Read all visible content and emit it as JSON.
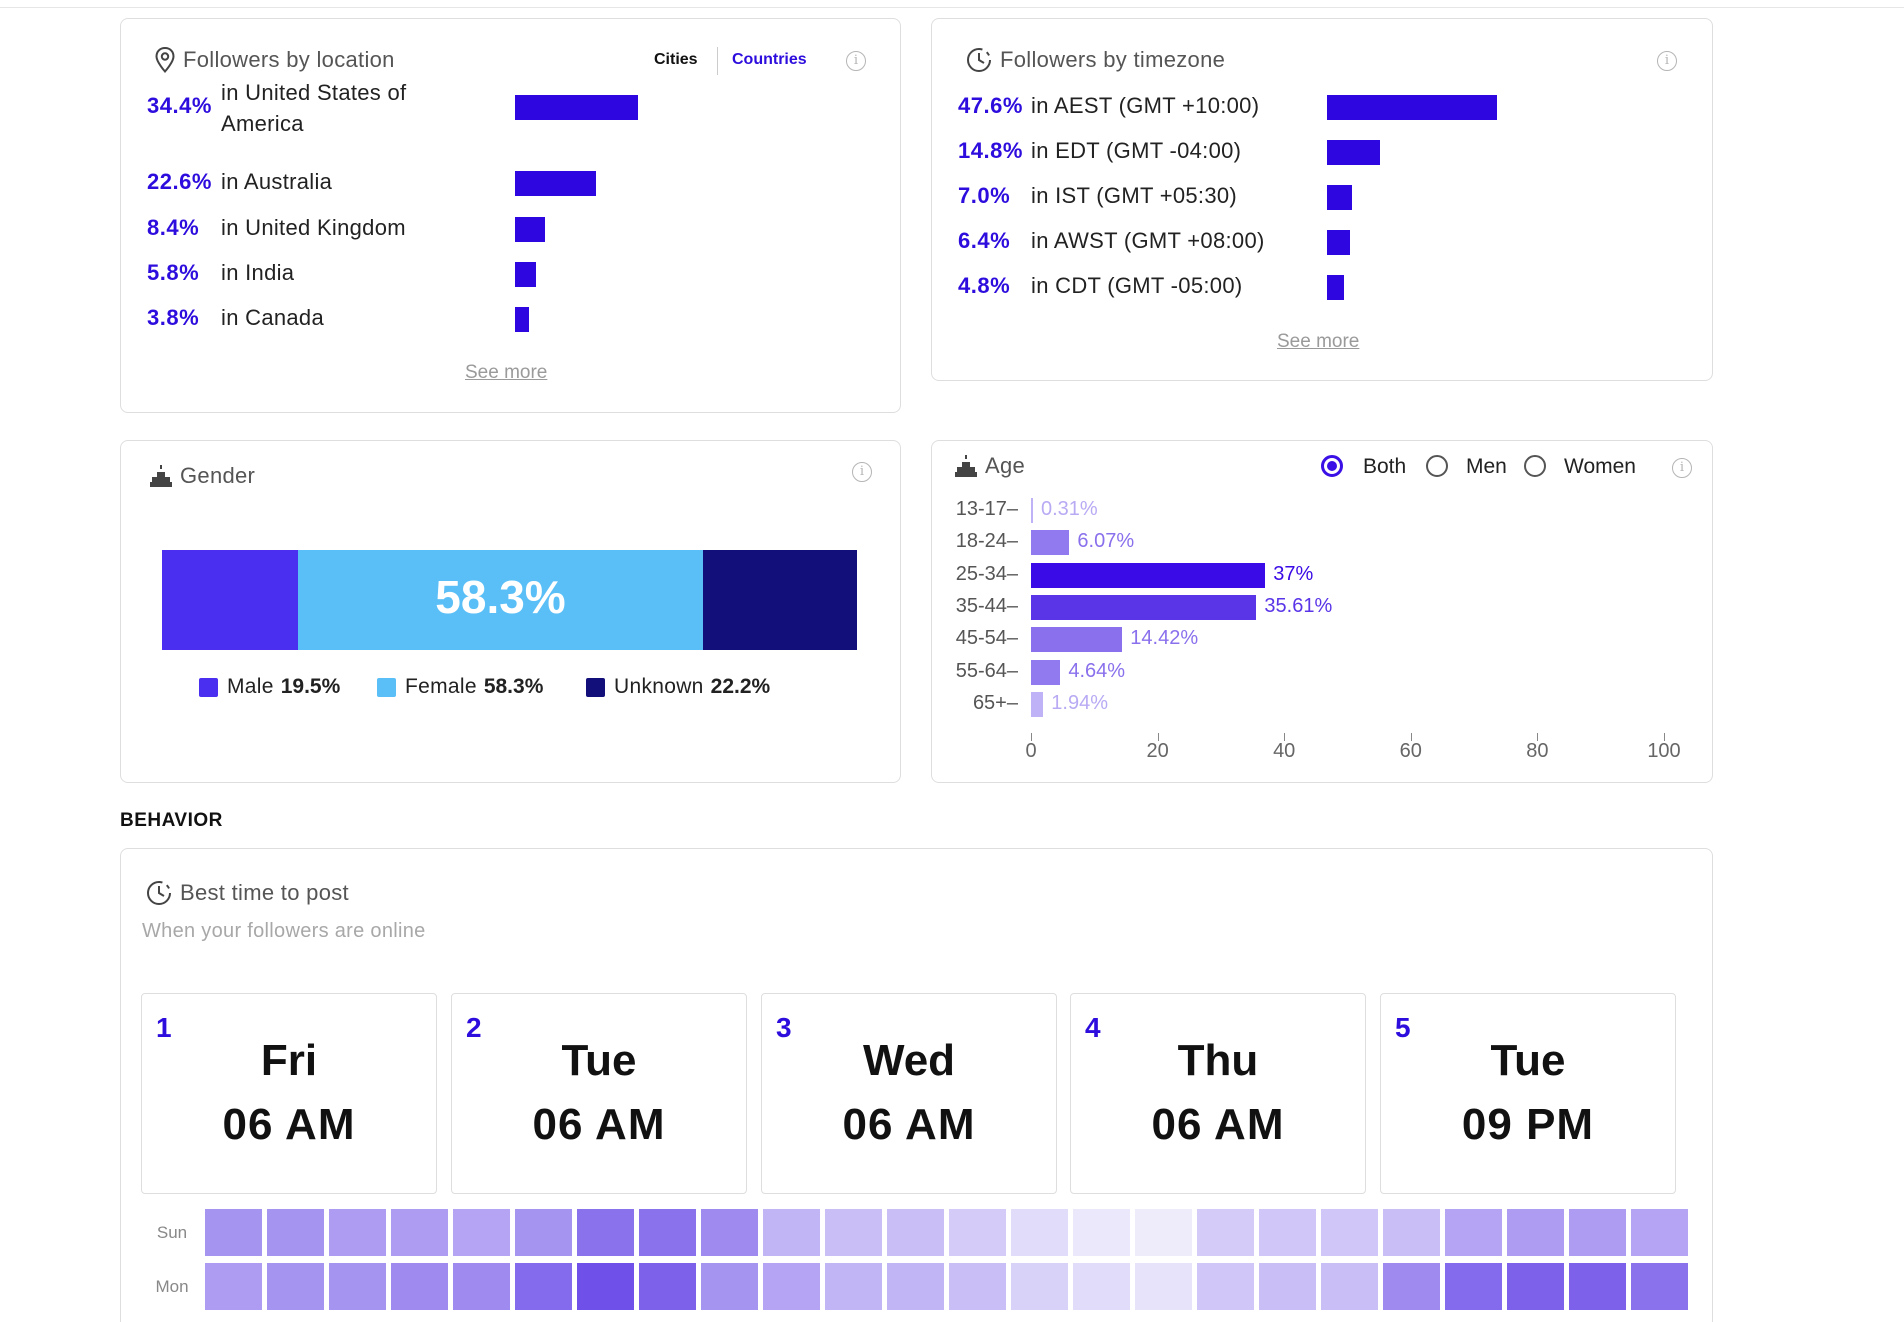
{
  "location": {
    "title": "Followers by location",
    "toggle": [
      "Cities",
      "Countries"
    ],
    "rows": [
      {
        "pct": "34.4%",
        "label1": "in United States of",
        "label2": "America",
        "value": 34.4
      },
      {
        "pct": "22.6%",
        "label1": "in Australia",
        "value": 22.6
      },
      {
        "pct": "8.4%",
        "label1": "in United Kingdom",
        "value": 8.4
      },
      {
        "pct": "5.8%",
        "label1": "in India",
        "value": 5.8
      },
      {
        "pct": "3.8%",
        "label1": "in Canada",
        "value": 3.8
      }
    ],
    "see_more": "See more"
  },
  "timezone": {
    "title": "Followers by timezone",
    "rows": [
      {
        "pct": "47.6%",
        "label1": "in AEST (GMT +10:00)",
        "value": 47.6
      },
      {
        "pct": "14.8%",
        "label1": "in EDT (GMT -04:00)",
        "value": 14.8
      },
      {
        "pct": "7.0%",
        "label1": "in IST (GMT +05:30)",
        "value": 7.0
      },
      {
        "pct": "6.4%",
        "label1": "in AWST (GMT +08:00)",
        "value": 6.4
      },
      {
        "pct": "4.8%",
        "label1": "in CDT (GMT -05:00)",
        "value": 4.8
      }
    ],
    "see_more": "See more"
  },
  "gender": {
    "title": "Gender",
    "center_label": "58.3%",
    "segments": [
      {
        "name": "Male",
        "value_label": "19.5%",
        "value": 19.5,
        "color": "#4a2ff0"
      },
      {
        "name": "Female",
        "value_label": "58.3%",
        "value": 58.3,
        "color": "#5bbff7"
      },
      {
        "name": "Unknown",
        "value_label": "22.2%",
        "value": 22.2,
        "color": "#120f7a"
      }
    ]
  },
  "age": {
    "title": "Age",
    "options": [
      "Both",
      "Men",
      "Women"
    ],
    "selected": "Both"
  },
  "chart_data": {
    "type": "bar",
    "orientation": "horizontal",
    "categories": [
      "13-17",
      "18-24",
      "25-34",
      "35-44",
      "45-54",
      "55-64",
      "65+"
    ],
    "values": [
      0.31,
      6.07,
      37,
      35.61,
      14.42,
      4.64,
      1.94
    ],
    "value_labels": [
      "0.31%",
      "6.07%",
      "37%",
      "35.61%",
      "14.42%",
      "4.64%",
      "1.94%"
    ],
    "xlim": [
      0,
      100
    ],
    "xticks": [
      "0",
      "20",
      "40",
      "60",
      "80",
      "100"
    ],
    "title": "",
    "xlabel": "",
    "ylabel": ""
  },
  "behavior": {
    "section_label": "BEHAVIOR",
    "title": "Best time to post",
    "subtitle": "When your followers are online",
    "slots": [
      {
        "rank": "1",
        "day": "Fri",
        "time": "06 AM"
      },
      {
        "rank": "2",
        "day": "Tue",
        "time": "06 AM"
      },
      {
        "rank": "3",
        "day": "Wed",
        "time": "06 AM"
      },
      {
        "rank": "4",
        "day": "Thu",
        "time": "06 AM"
      },
      {
        "rank": "5",
        "day": "Tue",
        "time": "09 PM"
      }
    ],
    "heatmap": {
      "rows": [
        {
          "day": "Sun",
          "levels": [
            0.55,
            0.55,
            0.5,
            0.5,
            0.45,
            0.55,
            0.75,
            0.75,
            0.6,
            0.35,
            0.3,
            0.3,
            0.22,
            0.12,
            0.05,
            0.03,
            0.22,
            0.25,
            0.25,
            0.3,
            0.45,
            0.5,
            0.5,
            0.45
          ]
        },
        {
          "day": "Mon",
          "levels": [
            0.5,
            0.55,
            0.55,
            0.6,
            0.6,
            0.8,
            0.95,
            0.85,
            0.55,
            0.45,
            0.35,
            0.35,
            0.3,
            0.18,
            0.12,
            0.08,
            0.25,
            0.3,
            0.3,
            0.6,
            0.8,
            0.85,
            0.85,
            0.75
          ]
        }
      ]
    }
  }
}
